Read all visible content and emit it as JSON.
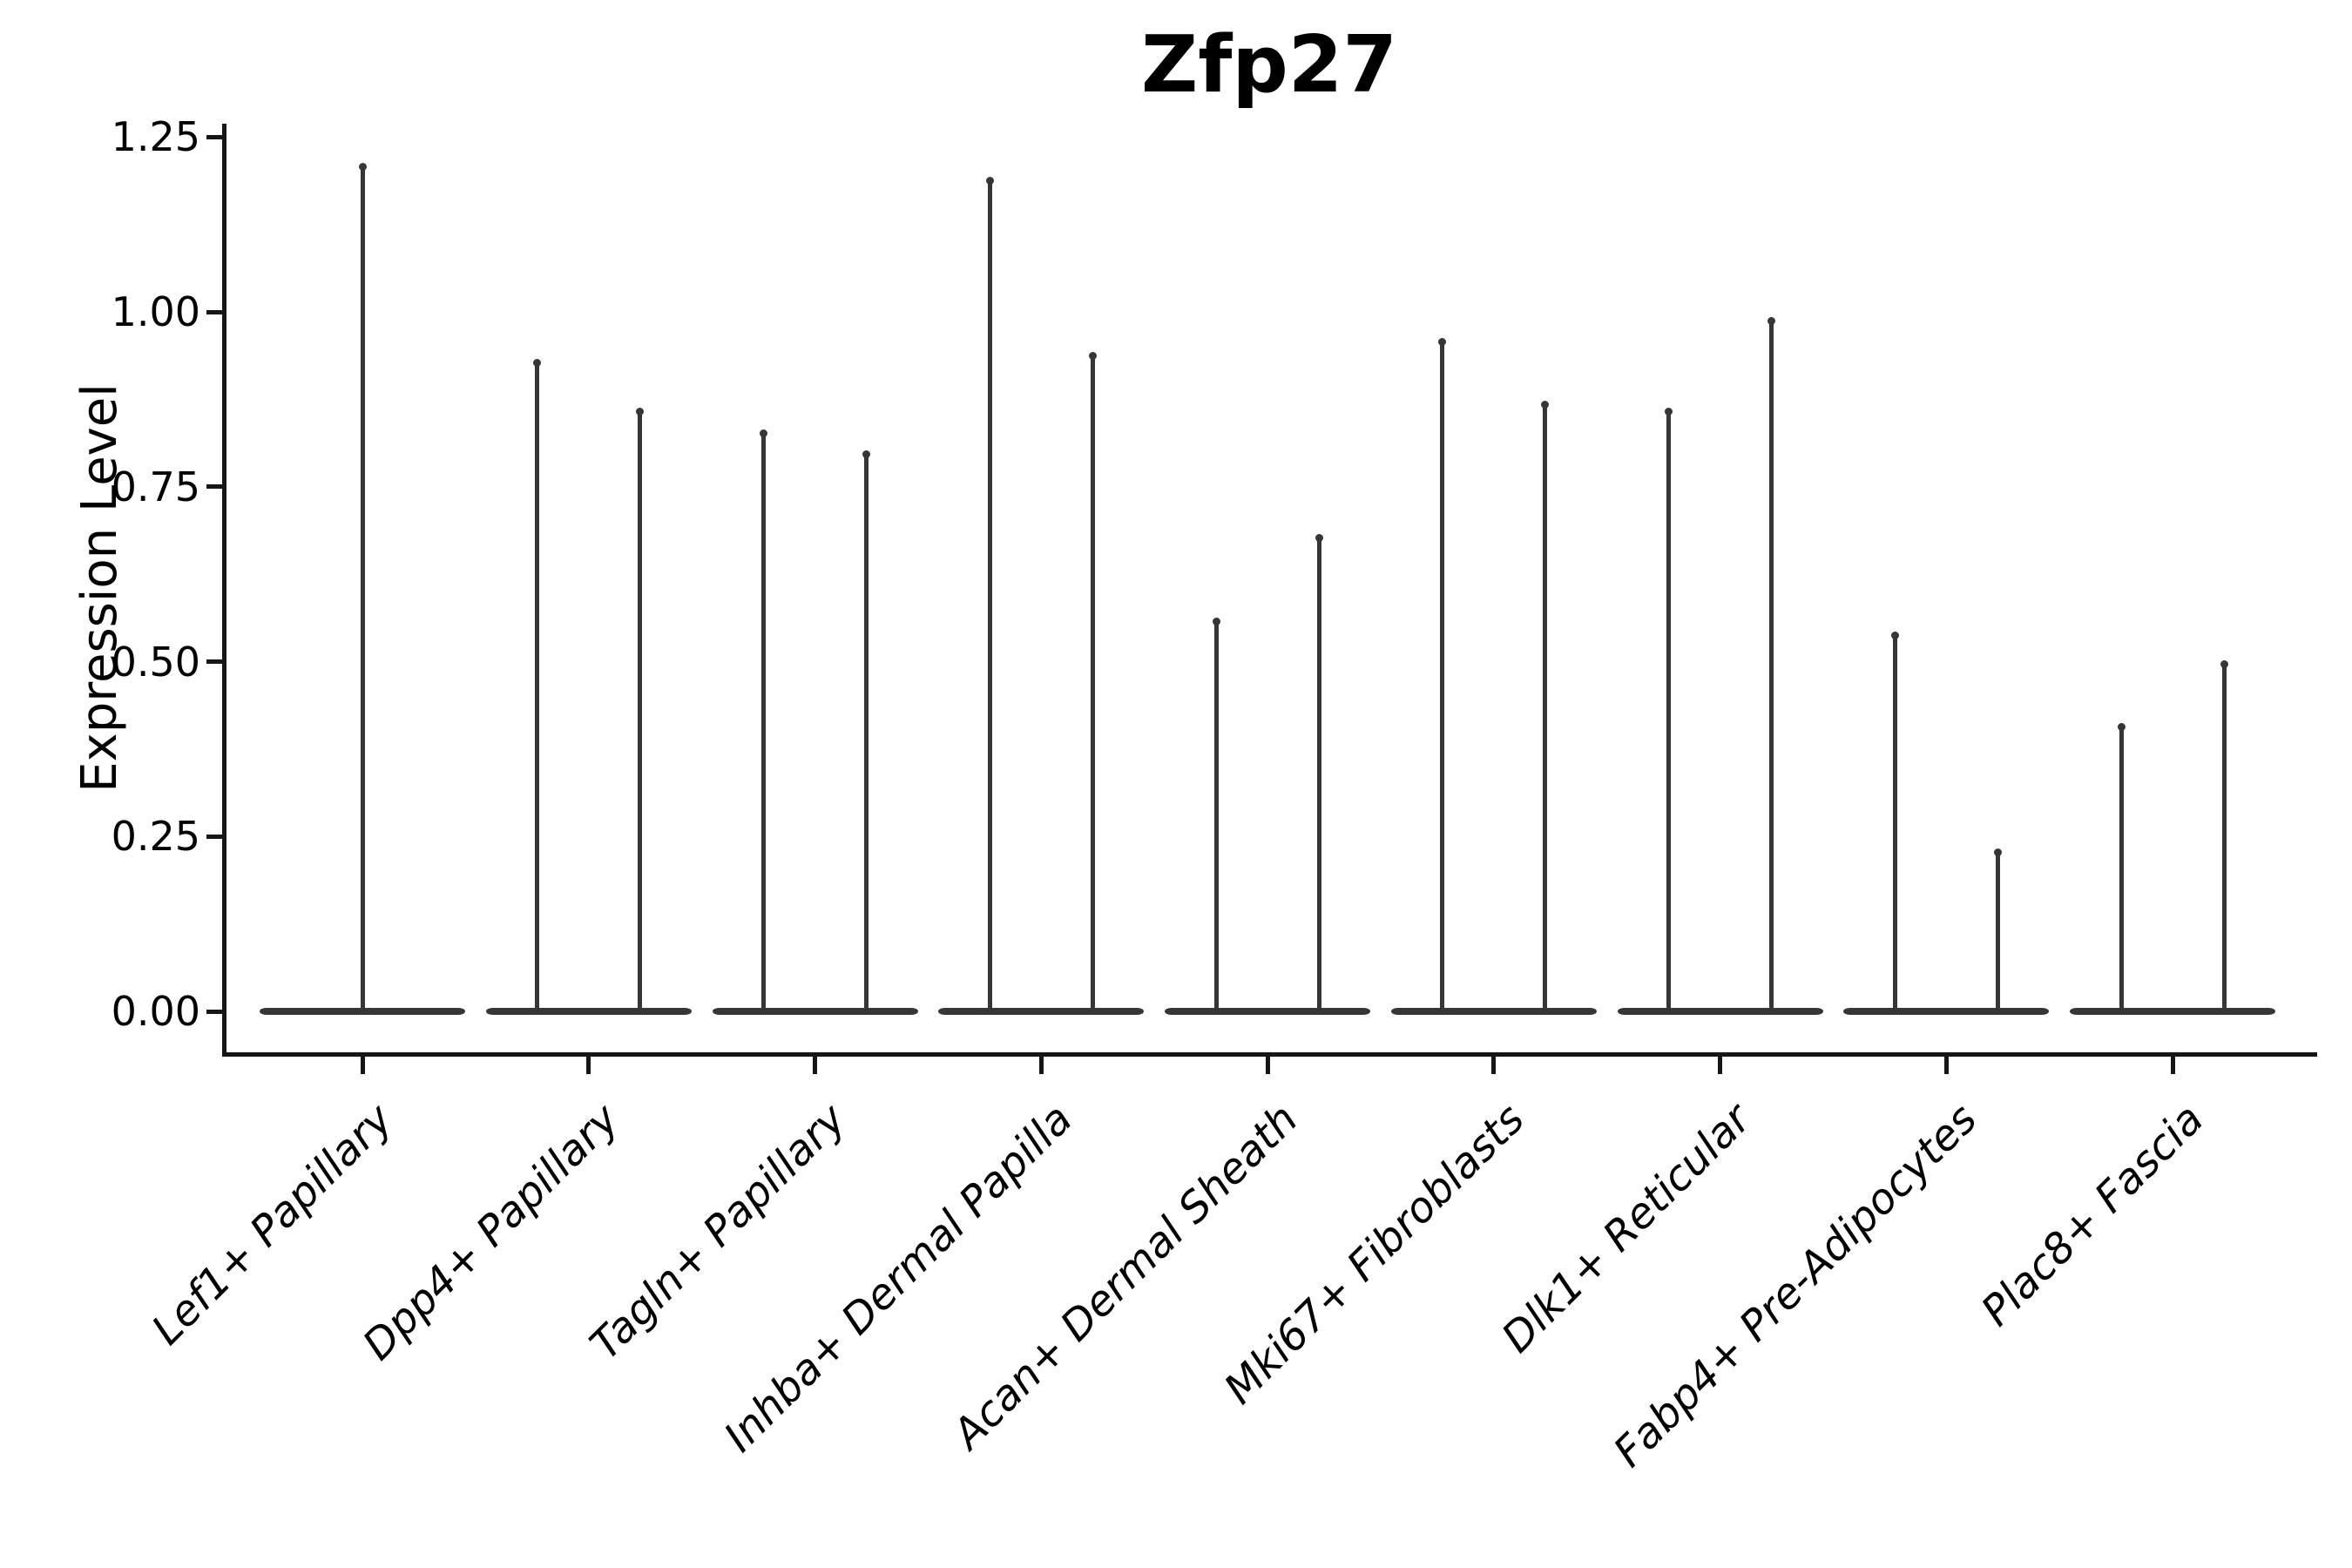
{
  "title": "Zfp27",
  "y_axis": {
    "label": "Expression Level",
    "ticks": [
      {
        "value": 1.25,
        "label": "1.25"
      },
      {
        "value": 1.0,
        "label": "1.00"
      },
      {
        "value": 0.75,
        "label": "0.75"
      },
      {
        "value": 0.5,
        "label": "0.50"
      },
      {
        "value": 0.25,
        "label": "0.25"
      },
      {
        "value": 0.0,
        "label": "0.00"
      }
    ]
  },
  "chart_data": {
    "type": "violin",
    "title": "Zfp27",
    "xlabel": "",
    "ylabel": "Expression Level",
    "ylim": [
      -0.05,
      1.27
    ],
    "y_ticks": [
      0.0,
      0.25,
      0.5,
      0.75,
      1.0,
      1.25
    ],
    "grid": false,
    "legend": null,
    "categories": [
      "Lef1+ Papillary",
      "Dpp4+ Papillary",
      "Tagln+ Papillary",
      "Inhba+ Dermal Papilla",
      "Acan+ Dermal Sheath",
      "Mki67+ Fibroblasts",
      "Dlk1+ Reticular",
      "Fabp4+ Pre-Adipocytes",
      "Plac8+ Fascia"
    ],
    "violins": [
      {
        "category": "Lef1+ Papillary",
        "spike_max_values": [
          1.21
        ]
      },
      {
        "category": "Dpp4+ Papillary",
        "spike_max_values": [
          0.93,
          0.86
        ]
      },
      {
        "category": "Tagln+ Papillary",
        "spike_max_values": [
          0.83,
          0.8
        ]
      },
      {
        "category": "Inhba+ Dermal Papilla",
        "spike_max_values": [
          1.19,
          0.94
        ]
      },
      {
        "category": "Acan+ Dermal Sheath",
        "spike_max_values": [
          0.56,
          0.68
        ]
      },
      {
        "category": "Mki67+ Fibroblasts",
        "spike_max_values": [
          0.96,
          0.87
        ]
      },
      {
        "category": "Dlk1+ Reticular",
        "spike_max_values": [
          0.86,
          0.99
        ]
      },
      {
        "category": "Fabp4+ Pre-Adipocytes",
        "spike_max_values": [
          0.54,
          0.23
        ]
      },
      {
        "category": "Plac8+ Fascia",
        "spike_max_values": [
          0.41,
          0.5
        ]
      }
    ],
    "note": "Each violin is flattened at expression 0 (wide dark base band) with a thin vertical spike reaching that group's maximum expression value"
  },
  "colors": {
    "violin": "#363636",
    "axis": "#161616",
    "text": "#000000",
    "background": "#ffffff"
  }
}
